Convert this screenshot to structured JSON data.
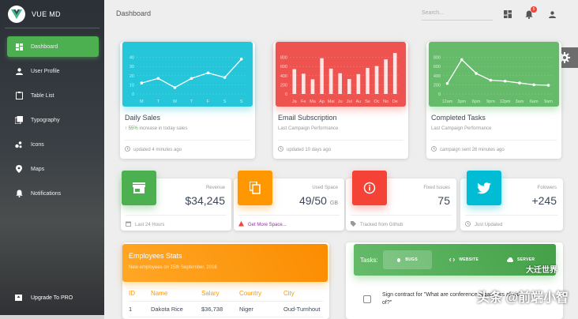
{
  "sidebar": {
    "brand": "VUE MD",
    "items": [
      {
        "label": "Dashboard",
        "icon": "dashboard-icon"
      },
      {
        "label": "User Profile",
        "icon": "person-icon"
      },
      {
        "label": "Table List",
        "icon": "clipboard-icon"
      },
      {
        "label": "Typography",
        "icon": "library-books-icon"
      },
      {
        "label": "Icons",
        "icon": "bubble-chart-icon"
      },
      {
        "label": "Maps",
        "icon": "location-icon"
      },
      {
        "label": "Notifications",
        "icon": "bell-icon"
      }
    ],
    "bottom": {
      "label": "Upgrade To PRO",
      "icon": "unarchive-icon"
    }
  },
  "topbar": {
    "title": "Dashboard",
    "search_placeholder": "Search...",
    "notification_count": "5"
  },
  "charts": [
    {
      "title": "Daily Sales",
      "subtitle_highlight": "55%",
      "subtitle_rest": " increase in today sales",
      "footer": "updated 4 minutes ago",
      "color": "#26c6da",
      "chart_data": {
        "type": "line",
        "categories": [
          "M",
          "T",
          "W",
          "T",
          "F",
          "S",
          "S"
        ],
        "values": [
          12,
          17,
          7,
          17,
          23,
          18,
          38
        ],
        "ylim": [
          0,
          50
        ],
        "yticks": [
          "40",
          "30",
          "20",
          "10",
          "0"
        ]
      }
    },
    {
      "title": "Email Subscription",
      "subtitle_rest": "Last Campaign Performance",
      "footer": "updated 10 days ago",
      "color": "#ef5350",
      "chart_data": {
        "type": "bar",
        "categories": [
          "Ja",
          "Fe",
          "Ma",
          "Ap",
          "Mai",
          "Ju",
          "Jul",
          "Au",
          "Se",
          "Oc",
          "No",
          "De"
        ],
        "values": [
          542,
          443,
          320,
          780,
          553,
          453,
          326,
          434,
          568,
          610,
          756,
          895
        ],
        "ylim": [
          0,
          1000
        ],
        "yticks": [
          "800",
          "600",
          "400",
          "200",
          "0"
        ]
      }
    },
    {
      "title": "Completed Tasks",
      "subtitle_rest": "Last Campaign Performance",
      "footer": "campaign sent 26 minutes ago",
      "color": "#66bb6a",
      "chart_data": {
        "type": "line",
        "categories": [
          "12am",
          "3pm",
          "6pm",
          "9pm",
          "12pm",
          "3am",
          "6am",
          "9am"
        ],
        "values": [
          230,
          750,
          450,
          300,
          280,
          240,
          200,
          190
        ],
        "ylim": [
          0,
          1000
        ],
        "yticks": [
          "800",
          "600",
          "400",
          "200",
          "0"
        ]
      }
    }
  ],
  "stats": [
    {
      "category": "Revenue",
      "value": "$34,245",
      "unit": "",
      "footer": "Last 24 Hours",
      "icon": "store-icon",
      "color": "#4caf50"
    },
    {
      "category": "Used Space",
      "value": "49/50",
      "unit": "GB",
      "footer": "Get More Space...",
      "icon": "content-copy-icon",
      "color": "#ff9800"
    },
    {
      "category": "Fixed Issues",
      "value": "75",
      "unit": "",
      "footer": "Tracked from Github",
      "icon": "info-outline-icon",
      "color": "#f44336"
    },
    {
      "category": "Folowers",
      "value": "+245",
      "unit": "",
      "footer": "Just Updated",
      "icon": "twitter-icon",
      "color": "#00bcd4"
    }
  ],
  "employees": {
    "title": "Employees Stats",
    "subtitle": "New employees on 15th September, 2016",
    "columns": [
      "ID",
      "Name",
      "Salary",
      "Country",
      "City"
    ],
    "rows": [
      [
        "1",
        "Dakota Rice",
        "$36,738",
        "Niger",
        "Oud-Turnhout"
      ]
    ]
  },
  "tasks": {
    "label": "Tasks:",
    "tabs": [
      "BUGS",
      "WEBSITE",
      "SERVER"
    ],
    "items": [
      "Sign contract for \"What are conference organizers afraid of?\""
    ]
  },
  "watermark": {
    "main": "头条 @前端小智",
    "sub": "大迁世界"
  }
}
